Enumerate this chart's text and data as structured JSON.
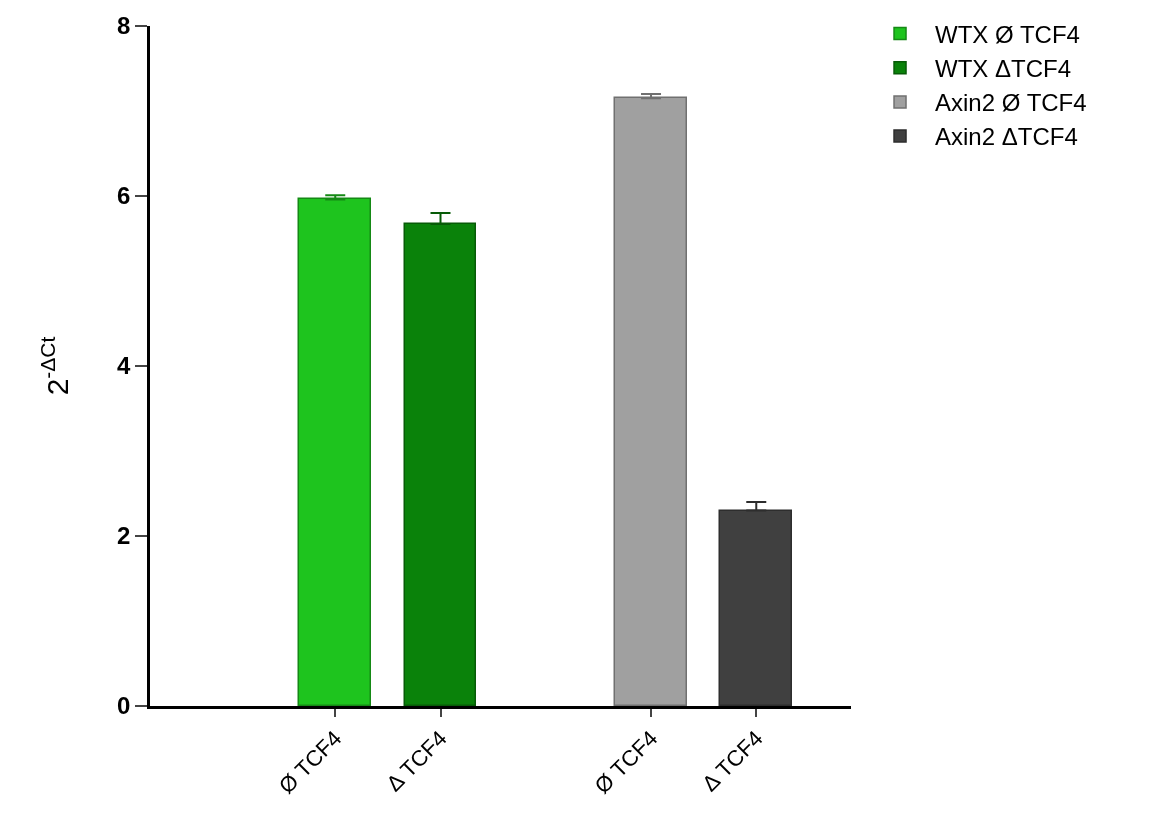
{
  "chart_data": {
    "type": "bar",
    "ylabel": "2$^{-ΔCt}$",
    "categories": [
      "Ø TCF4",
      "Δ TCF4",
      null,
      "Ø TCF4",
      "Δ TCF4"
    ],
    "series": [
      {
        "name": "WTX Ø TCF4",
        "color": "#1ec41e",
        "values": [
          5.96,
          null,
          null,
          null,
          null
        ],
        "errors": [
          [
            5.96,
            6.01
          ],
          null,
          null,
          null,
          null
        ]
      },
      {
        "name": "WTX ΔTCF4",
        "color": "#0a820a",
        "values": [
          null,
          5.67,
          null,
          null,
          null
        ],
        "errors": [
          null,
          [
            5.67,
            5.8
          ],
          null,
          null,
          null
        ]
      },
      {
        "name": "Axin2 Ø TCF4",
        "color": "#a0a0a0",
        "values": [
          null,
          null,
          null,
          7.15,
          null
        ],
        "errors": [
          null,
          null,
          null,
          [
            7.15,
            7.2
          ],
          null
        ]
      },
      {
        "name": "Axin2 ΔTCF4",
        "color": "#404040",
        "values": [
          null,
          null,
          null,
          null,
          2.3
        ],
        "errors": [
          null,
          null,
          null,
          null,
          [
            2.3,
            2.4
          ]
        ]
      }
    ],
    "ylim": [
      0,
      8
    ],
    "yticks": [
      0,
      2,
      4,
      6,
      8
    ],
    "grid": false,
    "legend": "top right"
  }
}
